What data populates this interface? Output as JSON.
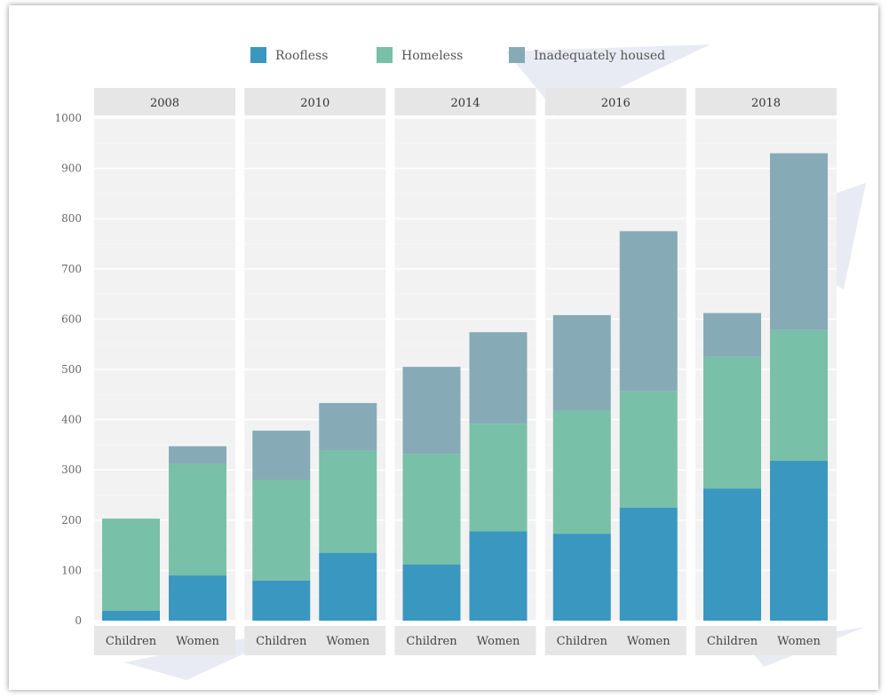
{
  "chart_data": {
    "type": "bar",
    "stacked": true,
    "facet_by": "year",
    "facets": [
      "2008",
      "2010",
      "2014",
      "2016",
      "2018"
    ],
    "categories": [
      "Children",
      "Women"
    ],
    "series": [
      {
        "name": "Roofless",
        "color": "#3a97c0",
        "values": [
          [
            20,
            90
          ],
          [
            80,
            135
          ],
          [
            112,
            178
          ],
          [
            173,
            225
          ],
          [
            263,
            318
          ]
        ]
      },
      {
        "name": "Homeless",
        "color": "#78c0a7",
        "values": [
          [
            183,
            222
          ],
          [
            200,
            203
          ],
          [
            220,
            214
          ],
          [
            245,
            232
          ],
          [
            262,
            260
          ]
        ]
      },
      {
        "name": "Inadequately housed",
        "color": "#86abb6",
        "values": [
          [
            0,
            35
          ],
          [
            98,
            95
          ],
          [
            173,
            182
          ],
          [
            190,
            318
          ],
          [
            87,
            352
          ]
        ]
      }
    ],
    "ylim": [
      0,
      1000
    ],
    "yticks": [
      "0",
      "100",
      "200",
      "300",
      "400",
      "500",
      "600",
      "700",
      "800",
      "900",
      "1000"
    ],
    "grid": true,
    "legend_position": "top"
  }
}
